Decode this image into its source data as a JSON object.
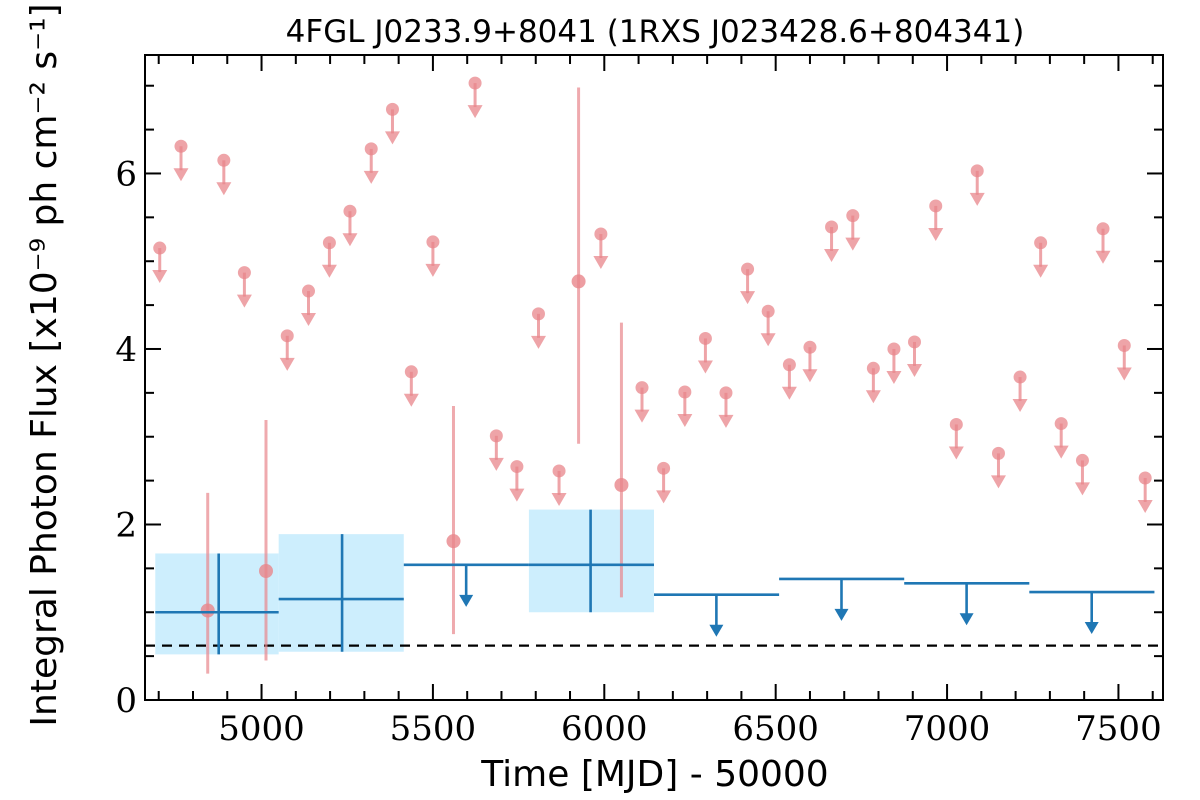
{
  "chart_data": {
    "type": "scatter",
    "title": "4FGL J0233.9+8041 (1RXS J023428.6+804341)",
    "xlabel": "Time [MJD] - 50000",
    "ylabel": "Integral Photon Flux [x10⁻⁹ ph cm⁻² s⁻¹]",
    "xlim": [
      4660,
      7630
    ],
    "ylim": [
      0,
      7.35
    ],
    "xticks": [
      5000,
      5500,
      6000,
      6500,
      7000,
      7500
    ],
    "yticks": [
      0,
      2,
      4,
      6
    ],
    "xtick_labels": [
      "5000",
      "5500",
      "6000",
      "6500",
      "7000",
      "7500"
    ],
    "ytick_labels": [
      "0",
      "2",
      "4",
      "6"
    ],
    "grid": false,
    "reference_line": {
      "y": 0.62,
      "style": "dashed",
      "color": "#000000"
    },
    "colors": {
      "fine": "#e8868b",
      "binned": "#1f77b4",
      "band": "#cdeefd"
    },
    "series": [
      {
        "role": "fine-bin-detections",
        "color": "#e8868b",
        "points": [
          {
            "x": 4843,
            "y": 1.02,
            "ylo": 0.3,
            "yhi": 2.36
          },
          {
            "x": 5013,
            "y": 1.47,
            "ylo": 0.45,
            "yhi": 3.19
          },
          {
            "x": 5560,
            "y": 1.81,
            "ylo": 0.75,
            "yhi": 3.35
          },
          {
            "x": 5925,
            "y": 4.77,
            "ylo": 2.92,
            "yhi": 6.98
          },
          {
            "x": 6050,
            "y": 2.45,
            "ylo": 1.17,
            "yhi": 4.3
          }
        ]
      },
      {
        "role": "fine-bin-upper-limits",
        "color": "#e8868b",
        "points": [
          {
            "x": 4703,
            "y": 5.15
          },
          {
            "x": 4765,
            "y": 6.31
          },
          {
            "x": 4890,
            "y": 6.15
          },
          {
            "x": 4950,
            "y": 4.87
          },
          {
            "x": 5075,
            "y": 4.15
          },
          {
            "x": 5137,
            "y": 4.66
          },
          {
            "x": 5198,
            "y": 5.21
          },
          {
            "x": 5258,
            "y": 5.57
          },
          {
            "x": 5320,
            "y": 6.28
          },
          {
            "x": 5382,
            "y": 6.73
          },
          {
            "x": 5437,
            "y": 3.74
          },
          {
            "x": 5500,
            "y": 5.22
          },
          {
            "x": 5623,
            "y": 7.03
          },
          {
            "x": 5685,
            "y": 3.01
          },
          {
            "x": 5745,
            "y": 2.66
          },
          {
            "x": 5808,
            "y": 4.4
          },
          {
            "x": 5868,
            "y": 2.61
          },
          {
            "x": 5990,
            "y": 5.31
          },
          {
            "x": 6110,
            "y": 3.56
          },
          {
            "x": 6173,
            "y": 2.64
          },
          {
            "x": 6235,
            "y": 3.51
          },
          {
            "x": 6295,
            "y": 4.12
          },
          {
            "x": 6355,
            "y": 3.5
          },
          {
            "x": 6418,
            "y": 4.91
          },
          {
            "x": 6478,
            "y": 4.43
          },
          {
            "x": 6540,
            "y": 3.82
          },
          {
            "x": 6600,
            "y": 4.02
          },
          {
            "x": 6663,
            "y": 5.39
          },
          {
            "x": 6725,
            "y": 5.52
          },
          {
            "x": 6785,
            "y": 3.78
          },
          {
            "x": 6845,
            "y": 4.0
          },
          {
            "x": 6905,
            "y": 4.08
          },
          {
            "x": 6967,
            "y": 5.63
          },
          {
            "x": 7027,
            "y": 3.14
          },
          {
            "x": 7088,
            "y": 6.03
          },
          {
            "x": 7150,
            "y": 2.81
          },
          {
            "x": 7213,
            "y": 3.68
          },
          {
            "x": 7273,
            "y": 5.21
          },
          {
            "x": 7333,
            "y": 3.15
          },
          {
            "x": 7395,
            "y": 2.73
          },
          {
            "x": 7455,
            "y": 5.37
          },
          {
            "x": 7517,
            "y": 4.04
          },
          {
            "x": 7578,
            "y": 2.53
          }
        ]
      },
      {
        "role": "coarse-bin-detections",
        "color": "#1f77b4",
        "points": [
          {
            "xlo": 4690,
            "xhi": 5050,
            "x": 4875,
            "y": 1.0,
            "ylo": 0.52,
            "yhi": 1.67
          },
          {
            "xlo": 5050,
            "xhi": 5415,
            "x": 5235,
            "y": 1.15,
            "ylo": 0.55,
            "yhi": 1.89
          },
          {
            "xlo": 5780,
            "xhi": 6145,
            "x": 5960,
            "y": 1.54,
            "ylo": 1.0,
            "yhi": 2.17
          }
        ]
      },
      {
        "role": "coarse-bin-upper-limits",
        "color": "#1f77b4",
        "points": [
          {
            "xlo": 5415,
            "xhi": 5780,
            "x": 5597,
            "y": 1.54
          },
          {
            "xlo": 6145,
            "xhi": 6510,
            "x": 6327,
            "y": 1.2
          },
          {
            "xlo": 6510,
            "xhi": 6875,
            "x": 6692,
            "y": 1.38
          },
          {
            "xlo": 6875,
            "xhi": 7240,
            "x": 7057,
            "y": 1.33
          },
          {
            "xlo": 7240,
            "xhi": 7605,
            "x": 7422,
            "y": 1.23
          }
        ]
      }
    ]
  }
}
